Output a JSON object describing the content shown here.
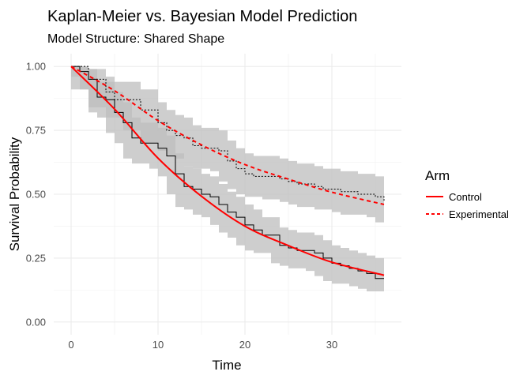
{
  "chart_data": {
    "type": "line",
    "title": "Kaplan-Meier vs. Bayesian Model Prediction",
    "subtitle": "Model Structure: Shared Shape",
    "xlabel": "Time",
    "ylabel": "Survival Probability",
    "xlim": [
      -2,
      38
    ],
    "ylim": [
      -0.05,
      1.05
    ],
    "xticks": [
      0,
      10,
      20,
      30
    ],
    "xtick_labels": [
      "0",
      "10",
      "20",
      "30"
    ],
    "yticks": [
      0,
      0.25,
      0.5,
      0.75,
      1.0
    ],
    "ytick_labels": [
      "0.00",
      "0.25",
      "0.50",
      "0.75",
      "1.00"
    ],
    "grid": true,
    "legend": {
      "title": "Arm",
      "position": "right",
      "entries": [
        "Control",
        "Experimental"
      ]
    },
    "colors": {
      "model": "#ff0000",
      "km": "#000000",
      "ribbon": "#bdbdbd"
    },
    "model_prediction": [
      {
        "name": "Control",
        "linetype": "solid",
        "x": [
          0,
          5,
          10,
          15,
          20,
          25,
          30,
          36
        ],
        "y": [
          1.0,
          0.833,
          0.641,
          0.492,
          0.375,
          0.299,
          0.234,
          0.183
        ]
      },
      {
        "name": "Experimental",
        "linetype": "dashed",
        "x": [
          0,
          5,
          10,
          15,
          20,
          25,
          30,
          36
        ],
        "y": [
          1.0,
          0.905,
          0.788,
          0.693,
          0.616,
          0.559,
          0.508,
          0.46
        ]
      }
    ],
    "kaplan_meier": [
      {
        "arm": "Control",
        "linetype": "solid",
        "time": [
          0,
          1,
          2,
          3,
          4,
          5,
          6,
          7,
          8,
          9,
          10,
          11,
          12,
          13,
          14,
          15,
          16,
          17,
          18,
          19,
          20,
          21,
          22,
          23,
          24,
          25,
          26,
          27,
          28,
          29,
          30,
          31,
          32,
          33,
          34,
          35,
          36
        ],
        "surv": [
          1,
          0.98,
          0.95,
          0.88,
          0.87,
          0.82,
          0.78,
          0.72,
          0.7,
          0.7,
          0.68,
          0.65,
          0.58,
          0.53,
          0.52,
          0.5,
          0.49,
          0.46,
          0.43,
          0.41,
          0.38,
          0.36,
          0.34,
          0.34,
          0.3,
          0.29,
          0.28,
          0.28,
          0.27,
          0.25,
          0.23,
          0.22,
          0.21,
          0.2,
          0.19,
          0.17,
          0.17
        ],
        "lower": [
          1,
          0.96,
          0.91,
          0.82,
          0.8,
          0.74,
          0.7,
          0.64,
          0.62,
          0.62,
          0.6,
          0.57,
          0.5,
          0.45,
          0.44,
          0.42,
          0.41,
          0.38,
          0.35,
          0.33,
          0.3,
          0.28,
          0.27,
          0.27,
          0.23,
          0.22,
          0.21,
          0.21,
          0.2,
          0.18,
          0.16,
          0.15,
          0.15,
          0.14,
          0.13,
          0.12,
          0.12
        ],
        "upper": [
          1,
          1,
          0.99,
          0.94,
          0.94,
          0.9,
          0.86,
          0.8,
          0.78,
          0.78,
          0.76,
          0.73,
          0.66,
          0.61,
          0.6,
          0.58,
          0.57,
          0.54,
          0.51,
          0.49,
          0.46,
          0.44,
          0.41,
          0.41,
          0.37,
          0.36,
          0.35,
          0.35,
          0.34,
          0.32,
          0.3,
          0.29,
          0.28,
          0.27,
          0.26,
          0.25,
          0.25
        ]
      },
      {
        "arm": "Experimental",
        "linetype": "dotted",
        "time": [
          0,
          2,
          4,
          5,
          6,
          8,
          10,
          11,
          12,
          13,
          14,
          15,
          16,
          17,
          18,
          19,
          20,
          21,
          22,
          24,
          25,
          26,
          28,
          29,
          30,
          31,
          33,
          34,
          35,
          36
        ],
        "surv": [
          1,
          0.95,
          0.9,
          0.87,
          0.87,
          0.83,
          0.78,
          0.75,
          0.73,
          0.72,
          0.69,
          0.68,
          0.68,
          0.67,
          0.63,
          0.6,
          0.58,
          0.57,
          0.57,
          0.56,
          0.55,
          0.54,
          0.53,
          0.52,
          0.52,
          0.51,
          0.5,
          0.5,
          0.49,
          0.47
        ],
        "lower": [
          1,
          0.91,
          0.84,
          0.8,
          0.8,
          0.75,
          0.7,
          0.67,
          0.65,
          0.64,
          0.61,
          0.6,
          0.6,
          0.59,
          0.55,
          0.52,
          0.5,
          0.49,
          0.49,
          0.48,
          0.47,
          0.46,
          0.45,
          0.44,
          0.44,
          0.43,
          0.42,
          0.42,
          0.41,
          0.39
        ],
        "upper": [
          1,
          0.99,
          0.96,
          0.94,
          0.94,
          0.91,
          0.86,
          0.83,
          0.81,
          0.8,
          0.77,
          0.76,
          0.76,
          0.75,
          0.71,
          0.68,
          0.66,
          0.65,
          0.65,
          0.64,
          0.63,
          0.62,
          0.61,
          0.6,
          0.6,
          0.59,
          0.58,
          0.58,
          0.57,
          0.55
        ]
      }
    ]
  }
}
